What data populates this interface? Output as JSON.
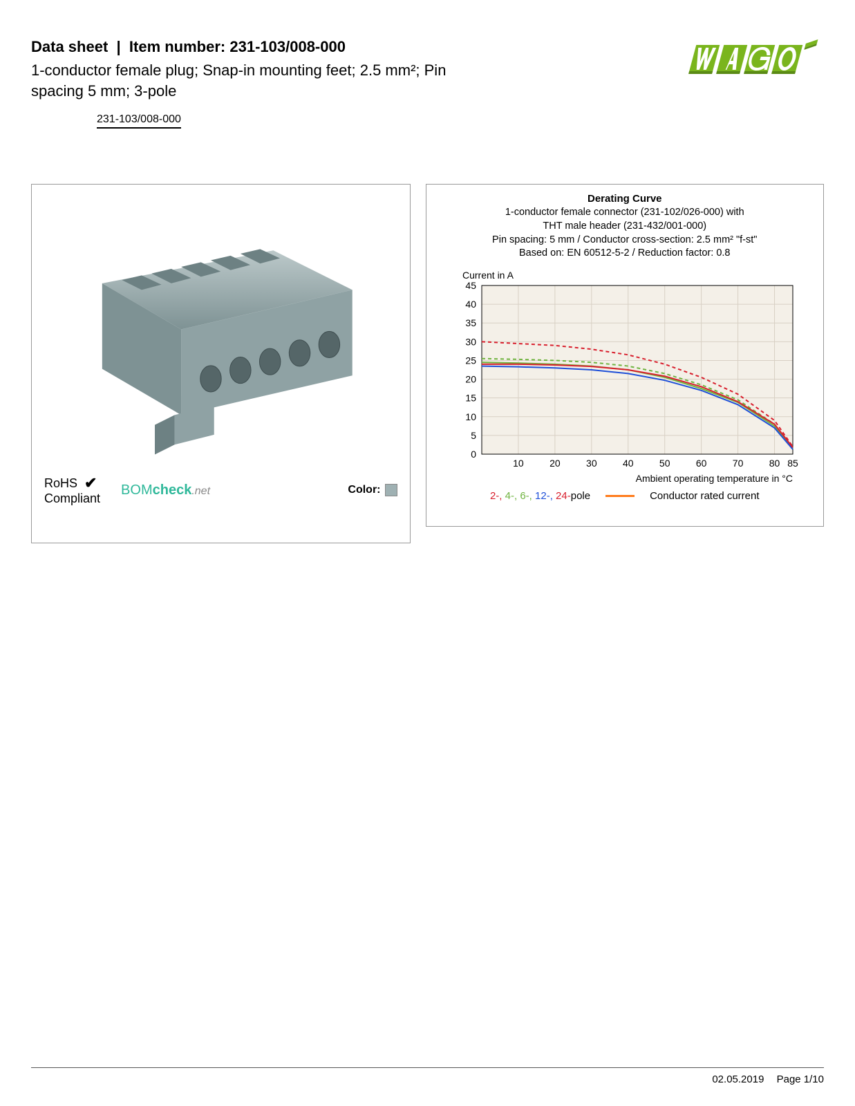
{
  "header": {
    "datasheet_label": "Data sheet",
    "item_number_label": "Item number:",
    "item_number": "231-103/008-000",
    "description": "1-conductor female plug; Snap-in mounting feet; 2.5 mm²; Pin spacing 5 mm; 3-pole",
    "part_label": "231-103/008-000"
  },
  "logo": {
    "brand": "WAGO",
    "fill": "#7ab51d",
    "shadow": "#5a8a15"
  },
  "product_image": {
    "body_color": "#9fb1b3",
    "body_shadow": "#7e9294",
    "body_highlight": "#bcc9ca"
  },
  "badges": {
    "rohs_line1": "RoHS",
    "rohs_line2": "Compliant",
    "bom_bom": "BOM",
    "bom_check": "check",
    "bom_net": ".net",
    "bom_color": "#2fb89a",
    "color_label": "Color:",
    "color_swatch": "#9fb1b3"
  },
  "chart": {
    "title": "Derating Curve",
    "subtitle_lines": [
      "1-conductor female connector (231-102/026-000) with",
      "THT male header (231-432/001-000)",
      "Pin spacing: 5 mm / Conductor cross-section: 2.5 mm² \"f-st\"",
      "Based on: EN 60512-5-2 / Reduction factor: 0.8"
    ],
    "y_label": "Current in A",
    "x_label": "Ambient operating temperature in °C",
    "x_ticks": [
      10,
      20,
      30,
      40,
      50,
      60,
      70,
      80,
      85
    ],
    "y_ticks": [
      0,
      5,
      10,
      15,
      20,
      25,
      30,
      35,
      40,
      45
    ],
    "y_max": 45,
    "x_max": 85,
    "grid_color": "#d8d0c4",
    "plot_bg": "#f4f0e8",
    "series": {
      "pole2": {
        "color": "#d81e2c",
        "dash": true,
        "data": [
          [
            0,
            30
          ],
          [
            10,
            29.5
          ],
          [
            20,
            29
          ],
          [
            30,
            28
          ],
          [
            40,
            26.5
          ],
          [
            50,
            24
          ],
          [
            60,
            20.5
          ],
          [
            70,
            16
          ],
          [
            80,
            9
          ],
          [
            85,
            2
          ]
        ]
      },
      "pole4": {
        "color": "#6fb33f",
        "dash": true,
        "data": [
          [
            0,
            25.5
          ],
          [
            10,
            25.3
          ],
          [
            20,
            25
          ],
          [
            30,
            24.5
          ],
          [
            40,
            23.5
          ],
          [
            50,
            21.5
          ],
          [
            60,
            18.5
          ],
          [
            70,
            14.5
          ],
          [
            80,
            8
          ],
          [
            85,
            1.7
          ]
        ]
      },
      "pole6": {
        "color": "#6fb33f",
        "dash": false,
        "data": [
          [
            0,
            24.5
          ],
          [
            10,
            24.3
          ],
          [
            20,
            24
          ],
          [
            30,
            23.5
          ],
          [
            40,
            22.5
          ],
          [
            50,
            20.5
          ],
          [
            60,
            17.5
          ],
          [
            70,
            13.8
          ],
          [
            80,
            7.5
          ],
          [
            85,
            1.5
          ]
        ]
      },
      "pole12": {
        "color": "#1e4fd8",
        "dash": false,
        "data": [
          [
            0,
            23.5
          ],
          [
            10,
            23.3
          ],
          [
            20,
            23
          ],
          [
            30,
            22.5
          ],
          [
            40,
            21.5
          ],
          [
            50,
            19.7
          ],
          [
            60,
            17
          ],
          [
            70,
            13.2
          ],
          [
            80,
            7
          ],
          [
            85,
            1.3
          ]
        ]
      },
      "pole24": {
        "color": "#d81e2c",
        "dash": false,
        "data": [
          [
            0,
            24
          ],
          [
            10,
            24
          ],
          [
            20,
            23.8
          ],
          [
            30,
            23.4
          ],
          [
            40,
            22.5
          ],
          [
            50,
            20.8
          ],
          [
            60,
            18
          ],
          [
            70,
            14
          ],
          [
            80,
            8
          ],
          [
            85,
            1.8
          ]
        ]
      }
    },
    "legend": {
      "poles": [
        {
          "label": "2-",
          "color": "#d81e2c"
        },
        {
          "label": "4-",
          "color": "#6fb33f"
        },
        {
          "label": "6-",
          "color": "#6fb33f"
        },
        {
          "label": "12-",
          "color": "#1e4fd8"
        },
        {
          "label": "24-",
          "color": "#d81e2c"
        }
      ],
      "poles_suffix": "pole",
      "rated_color": "#ff7b1a",
      "rated_label": "Conductor rated current"
    }
  },
  "footer": {
    "date": "02.05.2019",
    "page": "Page 1/10"
  }
}
